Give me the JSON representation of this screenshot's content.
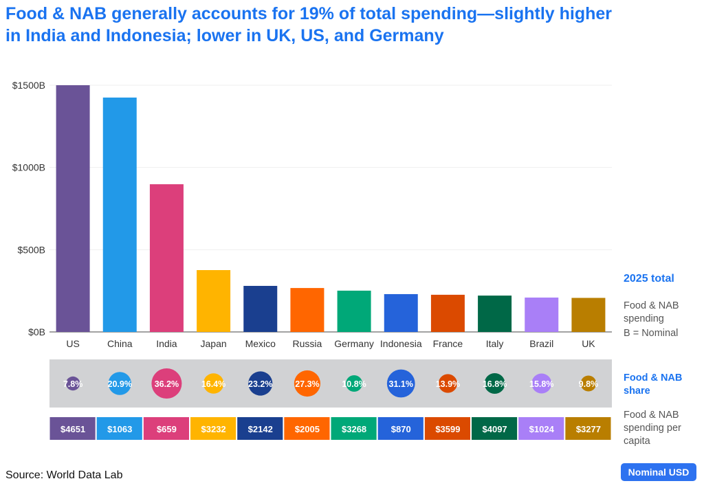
{
  "chart_data": {
    "type": "bar",
    "title": "Food & NAB generally accounts for 19% of total spending—slightly higher in India and Indonesia; lower in UK, US, and Germany",
    "categories": [
      "US",
      "China",
      "India",
      "Japan",
      "Mexico",
      "Russia",
      "Germany",
      "Indonesia",
      "France",
      "Italy",
      "Brazil",
      "UK"
    ],
    "values": [
      1500,
      1425,
      898,
      376,
      280,
      267,
      251,
      230,
      226,
      221,
      209,
      207
    ],
    "share_labels": [
      "7.8%",
      "20.9%",
      "36.2%",
      "16.4%",
      "23.2%",
      "27.3%",
      "10.8%",
      "31.1%",
      "13.9%",
      "16.8%",
      "15.8%",
      "9.8%"
    ],
    "share": [
      7.8,
      20.9,
      36.2,
      16.4,
      23.2,
      27.3,
      10.8,
      31.1,
      13.9,
      16.8,
      15.8,
      9.8
    ],
    "per_capita": [
      "$4651",
      "$1063",
      "$659",
      "$3232",
      "$2142",
      "$2005",
      "$3268",
      "$870",
      "$3599",
      "$4097",
      "$1024",
      "$3277"
    ],
    "colors": [
      "#6a5397",
      "#2299e8",
      "#dc3f7b",
      "#ffb400",
      "#1a3f8f",
      "#ff6600",
      "#00a878",
      "#2563da",
      "#db4a00",
      "#006847",
      "#a97ff7",
      "#b97e00"
    ],
    "yticks": [
      0,
      500,
      1000,
      1500
    ],
    "ytick_labels": [
      "$0B",
      "$500B",
      "$1000B",
      "$1500B"
    ],
    "ylim": [
      0,
      1500
    ],
    "grid": true
  },
  "legend": {
    "total_title": "2025 total",
    "total_desc": "Food & NAB spending",
    "total_note": "B = Nominal",
    "share_title": "Food & NAB share",
    "per_capita_desc": "Food & NAB spending per capita"
  },
  "source": "Source: World Data Lab",
  "currency_button": "Nominal USD"
}
